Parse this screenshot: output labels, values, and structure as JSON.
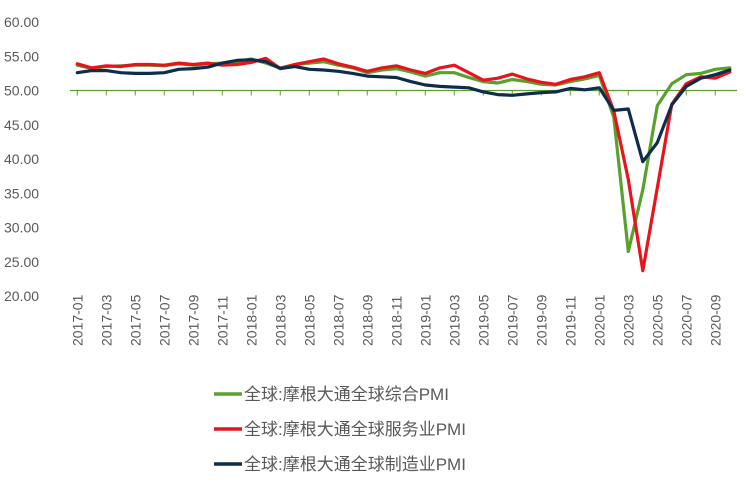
{
  "chart_data": {
    "type": "line",
    "title": "",
    "xlabel": "",
    "ylabel": "",
    "ylim": [
      20,
      60
    ],
    "yticks": [
      "20.00",
      "25.00",
      "30.00",
      "35.00",
      "40.00",
      "45.00",
      "50.00",
      "55.00",
      "60.00"
    ],
    "reference_line": 50,
    "x": [
      "2017-01",
      "2017-02",
      "2017-03",
      "2017-04",
      "2017-05",
      "2017-06",
      "2017-07",
      "2017-08",
      "2017-09",
      "2017-10",
      "2017-11",
      "2017-12",
      "2018-01",
      "2018-02",
      "2018-03",
      "2018-04",
      "2018-05",
      "2018-06",
      "2018-07",
      "2018-08",
      "2018-09",
      "2018-10",
      "2018-11",
      "2018-12",
      "2019-01",
      "2019-02",
      "2019-03",
      "2019-04",
      "2019-05",
      "2019-06",
      "2019-07",
      "2019-08",
      "2019-09",
      "2019-10",
      "2019-11",
      "2019-12",
      "2020-01",
      "2020-02",
      "2020-03",
      "2020-04",
      "2020-05",
      "2020-06",
      "2020-07",
      "2020-08",
      "2020-09",
      "2020-10"
    ],
    "xtick_labels": [
      "2017-01",
      "2017-03",
      "2017-05",
      "2017-07",
      "2017-09",
      "2017-11",
      "2018-01",
      "2018-03",
      "2018-05",
      "2018-07",
      "2018-09",
      "2018-11",
      "2019-01",
      "2019-03",
      "2019-05",
      "2019-07",
      "2019-09",
      "2019-11",
      "2020-01",
      "2020-03",
      "2020-05",
      "2020-07",
      "2020-09"
    ],
    "legend_position": "bottom",
    "series": [
      {
        "name": "全球:摩根大通全球综合PMI",
        "color": "#5aa02c",
        "values": [
          53.7,
          53.2,
          53.5,
          53.6,
          53.7,
          53.7,
          53.6,
          53.9,
          53.7,
          53.9,
          54.0,
          54.2,
          54.6,
          54.0,
          53.3,
          53.8,
          54.0,
          54.2,
          53.7,
          53.3,
          52.6,
          53.0,
          53.2,
          52.7,
          52.1,
          52.6,
          52.6,
          51.9,
          51.3,
          51.1,
          51.6,
          51.3,
          50.9,
          50.8,
          51.3,
          51.7,
          52.2,
          46.1,
          26.5,
          35.5,
          47.8,
          51.0,
          52.3,
          52.5,
          53.1,
          53.3
        ]
      },
      {
        "name": "全球:摩根大通全球服务业PMI",
        "color": "#e8141c",
        "values": [
          53.9,
          53.3,
          53.6,
          53.5,
          53.8,
          53.8,
          53.7,
          54.0,
          53.8,
          54.0,
          53.7,
          53.8,
          54.1,
          54.7,
          53.2,
          53.8,
          54.2,
          54.6,
          53.9,
          53.4,
          52.8,
          53.3,
          53.6,
          53.0,
          52.5,
          53.3,
          53.7,
          52.6,
          51.5,
          51.8,
          52.4,
          51.7,
          51.2,
          50.9,
          51.6,
          52.0,
          52.6,
          47.0,
          37.0,
          23.7,
          35.8,
          48.0,
          51.0,
          52.0,
          51.8,
          52.7
        ]
      },
      {
        "name": "全球:摩根大通全球制造业PMI",
        "color": "#0f2d4a",
        "values": [
          52.6,
          52.9,
          52.9,
          52.6,
          52.5,
          52.5,
          52.6,
          53.1,
          53.2,
          53.4,
          54.0,
          54.4,
          54.5,
          54.2,
          53.2,
          53.5,
          53.1,
          53.0,
          52.8,
          52.5,
          52.1,
          52.0,
          51.9,
          51.3,
          50.8,
          50.6,
          50.5,
          50.4,
          49.8,
          49.4,
          49.3,
          49.5,
          49.7,
          49.8,
          50.3,
          50.1,
          50.4,
          47.1,
          47.3,
          39.6,
          42.4,
          47.9,
          50.6,
          51.8,
          52.3,
          53.0
        ]
      }
    ]
  }
}
